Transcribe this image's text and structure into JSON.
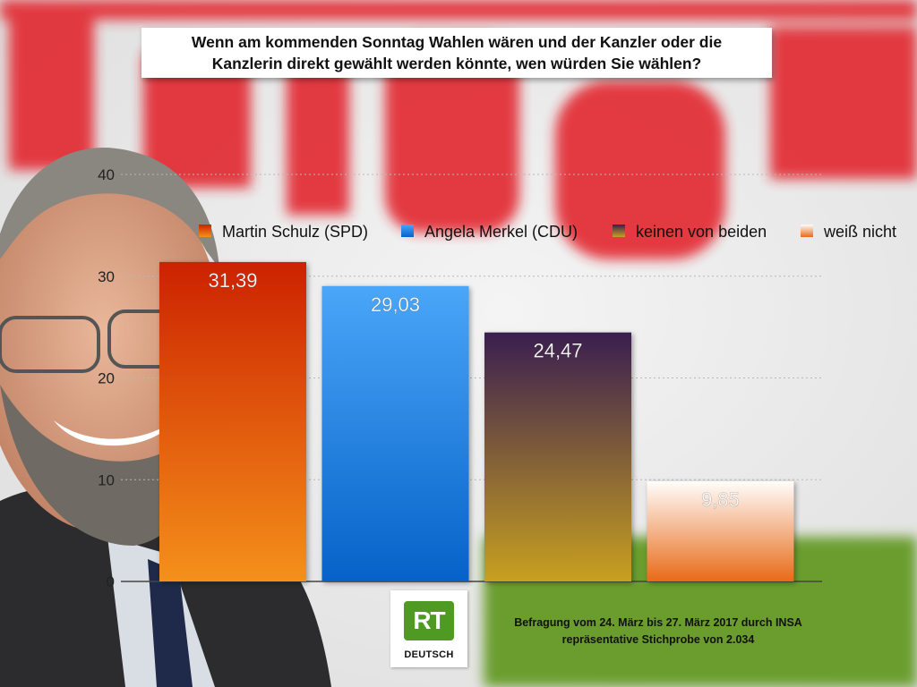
{
  "page": {
    "title_lines": [
      "Wenn am kommenden Sonntag Wahlen wären und der Kanzler oder die",
      "Kanzlerin direkt gewählt werden könnte, wen würden Sie wählen?"
    ],
    "source_lines": [
      "Befragung vom 24. März bis 27. März 2017 durch INSA",
      "repräsentative Stichprobe von 2.034"
    ],
    "logo": {
      "mark": "RT",
      "text": "DEUTSCH",
      "icon": "rt-logo-icon",
      "color": "#4e9a22"
    },
    "background": {
      "wall": "#ececec",
      "sign_red": "#e2242b",
      "grass": "#6a9d2f"
    }
  },
  "chart_data": {
    "type": "bar",
    "categories": [
      "Martin Schulz (SPD)",
      "Angela Merkel (CDU)",
      "keinen von beiden",
      "weiß nicht"
    ],
    "values": [
      31.39,
      29.03,
      24.47,
      9.85
    ],
    "value_labels": [
      "31,39",
      "29,03",
      "24,47",
      "9,85"
    ],
    "ylim": [
      0,
      40
    ],
    "yticks": [
      0,
      10,
      20,
      30,
      40
    ],
    "grid": true,
    "legend": "top",
    "colors": [
      {
        "top": "#cc2200",
        "bottom": "#f5901a"
      },
      {
        "top": "#4aa6f8",
        "bottom": "#0662c8"
      },
      {
        "top": "#3a1e50",
        "bottom": "#c8a020"
      },
      {
        "top": "#fffdfc",
        "bottom": "#e86a18"
      }
    ],
    "title": "",
    "xlabel": "",
    "ylabel": ""
  }
}
